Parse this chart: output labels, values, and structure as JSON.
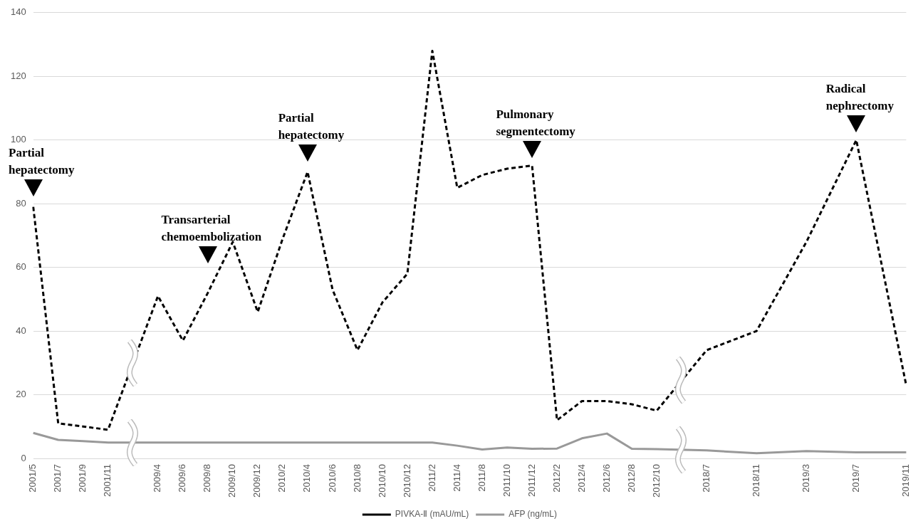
{
  "chart_data": {
    "type": "line",
    "categories": [
      "2001/5",
      "2001/7",
      "2001/9",
      "2001/11",
      null,
      "2009/4",
      "2009/6",
      "2009/8",
      "2009/10",
      "2009/12",
      "2010/2",
      "2010/4",
      "2010/6",
      "2010/8",
      "2010/10",
      "2010/12",
      "2011/2",
      "2011/4",
      "2011/8",
      "2011/10",
      "2011/12",
      "2012/2",
      "2012/4",
      "2012/6",
      "2012/8",
      "2012/10",
      null,
      "2018/7",
      null,
      "2018/11",
      null,
      "2019/3",
      null,
      "2019/7",
      null,
      "2019/11"
    ],
    "series": [
      {
        "name": "PIVKA-Ⅱ (mAU/mL)",
        "color": "#000000",
        "line_style": "dashed",
        "values": [
          79,
          11,
          10,
          9,
          null,
          51,
          37,
          52,
          68,
          46,
          69,
          90,
          53,
          34,
          49,
          58,
          128,
          85,
          89,
          91,
          92,
          12,
          18,
          18,
          17,
          15,
          null,
          34,
          null,
          40,
          null,
          68,
          null,
          100,
          null,
          23
        ]
      },
      {
        "name": "AFP (ng/mL)",
        "color": "#999999",
        "line_style": "solid",
        "values": [
          8,
          5.8,
          5.4,
          5,
          null,
          5,
          5,
          5,
          5,
          5,
          5,
          5,
          5,
          5,
          5,
          5,
          5,
          4,
          2.8,
          3.4,
          3,
          3.1,
          6.3,
          7.8,
          3,
          2.9,
          null,
          2.5,
          null,
          1.6,
          null,
          2.3,
          null,
          1.9,
          null,
          1.9
        ]
      }
    ],
    "ylim": [
      0,
      140
    ],
    "yticks": [
      0,
      20,
      40,
      60,
      80,
      100,
      120,
      140
    ],
    "grid": "y",
    "legend": "bottom",
    "marker": "none",
    "annotations": [
      {
        "text": "Partial hepatectomy",
        "x": "2001/5",
        "y": 85
      },
      {
        "text": "Transarterial chemoembolization",
        "x": "2009/8",
        "y": 64
      },
      {
        "text": "Partial hepatectomy",
        "x": "2010/4",
        "y": 96
      },
      {
        "text": "Pulmonary segmentectomy",
        "x": "2011/12",
        "y": 97
      },
      {
        "text": "Radical nephrectomy",
        "x": "2019/7",
        "y": 105
      }
    ]
  }
}
